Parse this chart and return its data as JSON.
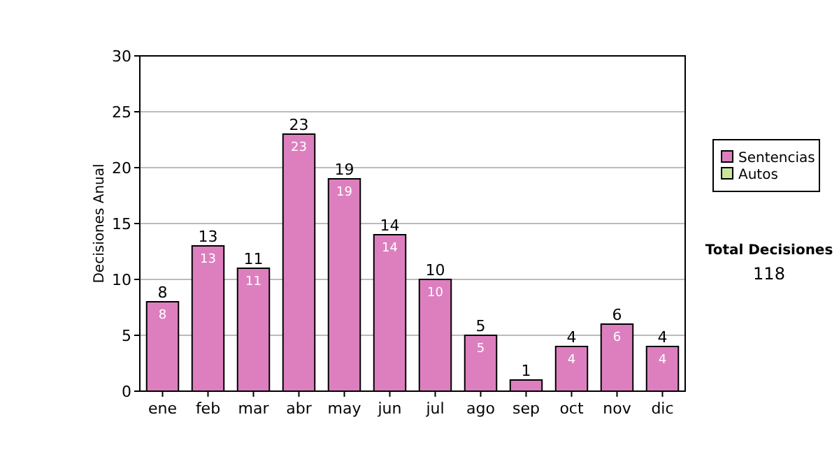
{
  "chart_data": {
    "type": "bar",
    "stacked": true,
    "ylabel": "Decisiones Anual",
    "categories": [
      "ene",
      "feb",
      "mar",
      "abr",
      "may",
      "jun",
      "jul",
      "ago",
      "sep",
      "oct",
      "nov",
      "dic"
    ],
    "series": [
      {
        "name": "Sentencias",
        "color": "#dd7fbf",
        "values": [
          8,
          13,
          11,
          23,
          19,
          14,
          10,
          5,
          1,
          4,
          6,
          4
        ],
        "value_labels": [
          "8",
          "13",
          "11",
          "23",
          "19",
          "14",
          "10",
          "5",
          null,
          "4",
          "6",
          "4"
        ]
      },
      {
        "name": "Autos",
        "color": "#cce699",
        "values": [
          0,
          0,
          0,
          0,
          0,
          0,
          0,
          0,
          0,
          0,
          0,
          0
        ]
      }
    ],
    "totals": [
      "8",
      "13",
      "11",
      "23",
      "19",
      "14",
      "10",
      "5",
      "1",
      "4",
      "6",
      "4"
    ],
    "ylim": [
      0,
      30
    ],
    "yticks": [
      0,
      5,
      10,
      15,
      20,
      25,
      30
    ],
    "grid": "y",
    "legend": "right",
    "annotations": [
      "Total Decisiones",
      "118"
    ]
  }
}
